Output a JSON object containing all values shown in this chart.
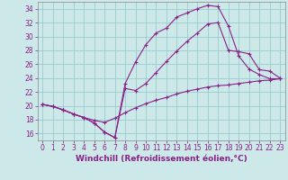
{
  "bg_color": "#cce8e8",
  "grid_color": "#99cccc",
  "line_color": "#882288",
  "marker": "+",
  "xlabel": "Windchill (Refroidissement éolien,°C)",
  "xlabel_color": "#882288",
  "xlabel_fontsize": 6.5,
  "tick_color": "#882288",
  "tick_fontsize": 5.5,
  "xlim": [
    -0.5,
    23.5
  ],
  "ylim": [
    15.0,
    35.0
  ],
  "yticks": [
    16,
    18,
    20,
    22,
    24,
    26,
    28,
    30,
    32,
    34
  ],
  "xticks": [
    0,
    1,
    2,
    3,
    4,
    5,
    6,
    7,
    8,
    9,
    10,
    11,
    12,
    13,
    14,
    15,
    16,
    17,
    18,
    19,
    20,
    21,
    22,
    23
  ],
  "line1_x": [
    0,
    1,
    2,
    3,
    4,
    5,
    6,
    7,
    8,
    9,
    10,
    11,
    12,
    13,
    14,
    15,
    16,
    17,
    18,
    19,
    20,
    21,
    22,
    23
  ],
  "line1_y": [
    20.2,
    19.9,
    19.4,
    18.8,
    18.3,
    17.9,
    17.6,
    18.2,
    19.0,
    19.7,
    20.3,
    20.8,
    21.2,
    21.7,
    22.1,
    22.4,
    22.7,
    22.9,
    23.0,
    23.2,
    23.4,
    23.6,
    23.7,
    23.9
  ],
  "line2_x": [
    0,
    1,
    2,
    3,
    4,
    5,
    6,
    7,
    8,
    9,
    10,
    11,
    12,
    13,
    14,
    15,
    16,
    17,
    18,
    19,
    20,
    21,
    22,
    23
  ],
  "line2_y": [
    20.2,
    19.9,
    19.4,
    18.8,
    18.3,
    17.5,
    16.2,
    15.4,
    23.2,
    26.3,
    28.8,
    30.5,
    31.2,
    32.8,
    33.4,
    34.0,
    34.5,
    34.3,
    31.5,
    27.2,
    25.3,
    24.5,
    23.9,
    23.9
  ],
  "line3_x": [
    0,
    1,
    2,
    3,
    4,
    5,
    6,
    7,
    8,
    9,
    10,
    11,
    12,
    13,
    14,
    15,
    16,
    17,
    18,
    19,
    20,
    21,
    22,
    23
  ],
  "line3_y": [
    20.2,
    19.9,
    19.4,
    18.8,
    18.3,
    17.5,
    16.2,
    15.4,
    22.5,
    22.2,
    23.2,
    24.8,
    26.4,
    27.9,
    29.3,
    30.5,
    31.8,
    32.0,
    28.0,
    27.8,
    27.5,
    25.2,
    25.0,
    24.0
  ]
}
